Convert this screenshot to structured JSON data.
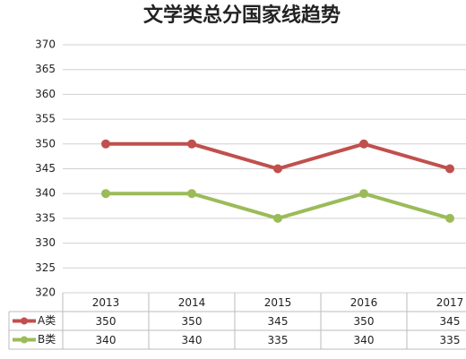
{
  "chart_data": {
    "type": "line",
    "title": "文学类总分国家线趋势",
    "categories": [
      "2013",
      "2014",
      "2015",
      "2016",
      "2017"
    ],
    "series": [
      {
        "name": "A类",
        "color": "#c0504d",
        "values": [
          350,
          350,
          345,
          350,
          345
        ]
      },
      {
        "name": "B类",
        "color": "#9bbb59",
        "values": [
          340,
          340,
          335,
          340,
          335
        ]
      }
    ],
    "ylim": [
      320,
      370
    ],
    "yticks": [
      320,
      325,
      330,
      335,
      340,
      345,
      350,
      355,
      360,
      365,
      370
    ],
    "grid": true
  }
}
